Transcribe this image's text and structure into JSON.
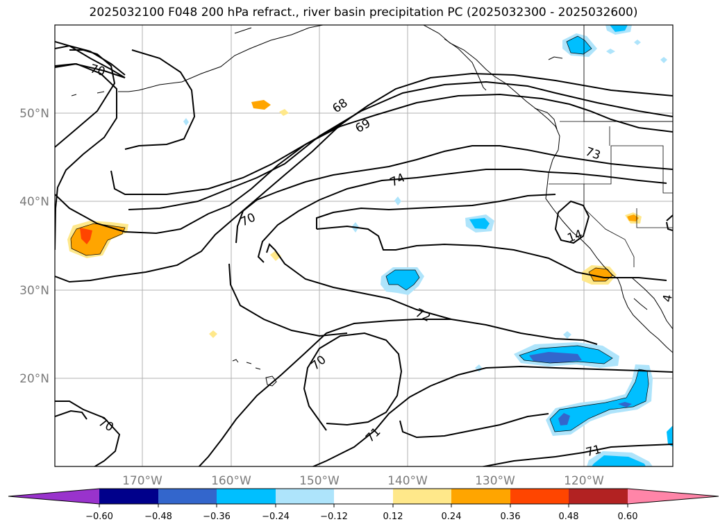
{
  "title": "2025032100 F048 200 hPa refract., river basin precipitation PC (2025032300 - 2025032600)",
  "map": {
    "lon_labels": [
      "170°W",
      "160°W",
      "150°W",
      "140°W",
      "130°W",
      "120°W"
    ],
    "lat_labels": [
      "50°N",
      "40°N",
      "30°N",
      "20°N"
    ],
    "contour_labels": [
      "70",
      "68",
      "69",
      "73",
      "74",
      "70",
      "14",
      "72",
      "70",
      "70",
      "71",
      "71",
      "4"
    ]
  },
  "colorbar": {
    "colors": [
      "#9933cc",
      "#00008b",
      "#3366cc",
      "#00bfff",
      "#aee4fb",
      "#ffffff",
      "#ffe88a",
      "#ffa500",
      "#ff4500",
      "#b22222",
      "#ff85a8"
    ],
    "tick_labels": [
      "−0.60",
      "−0.48",
      "−0.36",
      "−0.24",
      "−0.12",
      "0.12",
      "0.24",
      "0.36",
      "0.48",
      "0.60"
    ]
  }
}
